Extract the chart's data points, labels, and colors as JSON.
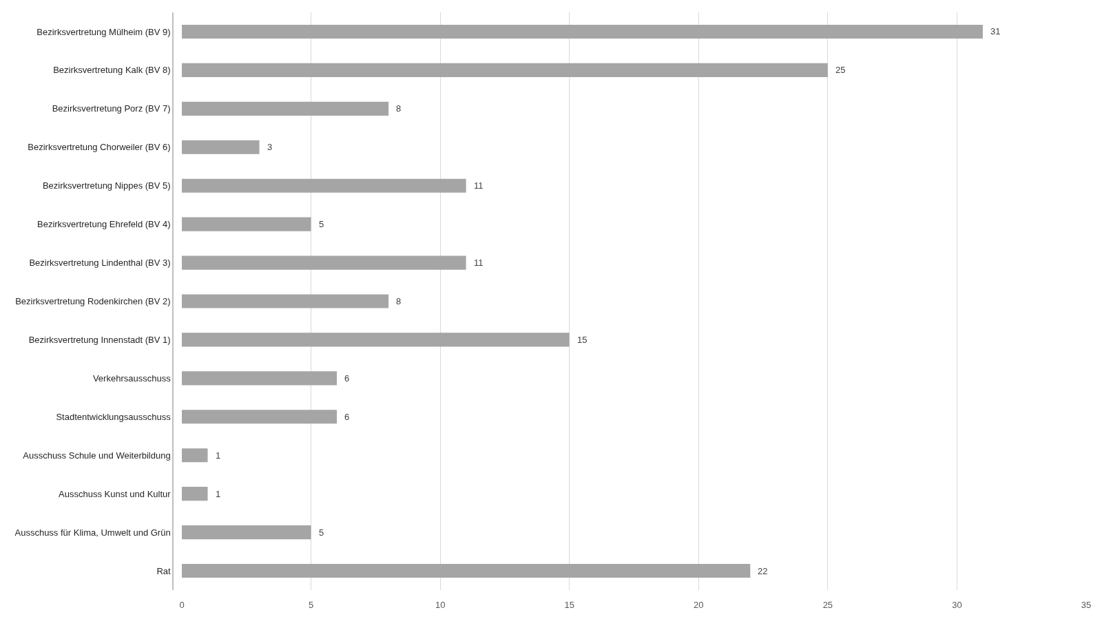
{
  "chart_data": {
    "type": "bar",
    "orientation": "horizontal",
    "categories": [
      "Bezirksvertretung Mülheim (BV 9)",
      "Bezirksvertretung Kalk (BV 8)",
      "Bezirksvertretung Porz (BV 7)",
      "Bezirksvertretung Chorweiler (BV 6)",
      "Bezirksvertretung Nippes (BV 5)",
      "Bezirksvertretung Ehrefeld (BV 4)",
      "Bezirksvertretung Lindenthal (BV 3)",
      "Bezirksvertretung Rodenkirchen (BV 2)",
      "Bezirksvertretung Innenstadt (BV 1)",
      "Verkehrsausschuss",
      "Stadtentwicklungsausschuss",
      "Ausschuss Schule und Weiterbildung",
      "Ausschuss Kunst und Kultur",
      "Ausschuss für Klima, Umwelt und Grün",
      "Rat"
    ],
    "values": [
      31,
      25,
      8,
      3,
      11,
      5,
      11,
      8,
      15,
      6,
      6,
      1,
      1,
      5,
      22
    ],
    "color": "#a5a5a5",
    "xlim": [
      0,
      35
    ],
    "xticks": [
      0,
      5,
      10,
      15,
      20,
      25,
      30,
      35
    ],
    "grid": "x",
    "data_labels": true
  }
}
